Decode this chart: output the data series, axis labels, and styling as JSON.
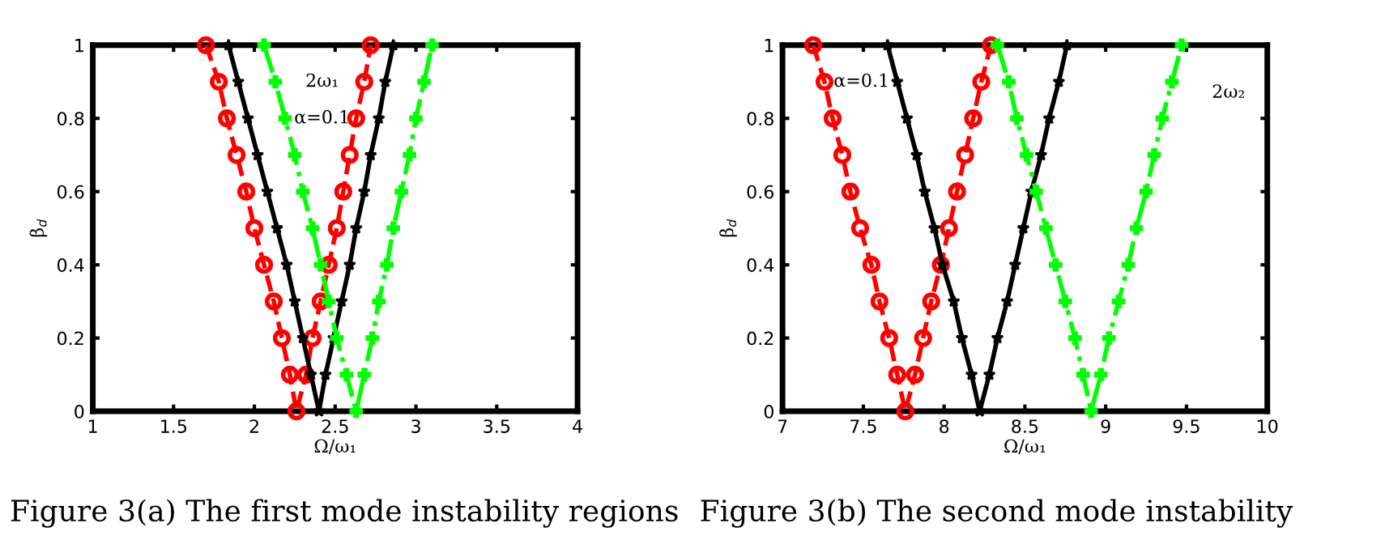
{
  "chart_data": [
    {
      "type": "line",
      "xlabel": "Ω/ω₁",
      "ylabel": "β$_{d}$",
      "xlim": [
        1,
        4
      ],
      "xticks": [
        1,
        1.5,
        2,
        2.5,
        3,
        3.5,
        4
      ],
      "ylim": [
        0,
        1
      ],
      "yticks": [
        0,
        0.2,
        0.4,
        0.6,
        0.8,
        1
      ],
      "grid": false,
      "legend": false,
      "series": [
        {
          "color": "#ff0000",
          "marker": "circle",
          "line_style": "dashed",
          "x": [
            1.7,
            1.78,
            1.83,
            1.89,
            1.95,
            2.0,
            2.06,
            2.12,
            2.17,
            2.22,
            2.26,
            2.32,
            2.36,
            2.41,
            2.46,
            2.51,
            2.55,
            2.59,
            2.63,
            2.68,
            2.72
          ],
          "values": [
            1,
            0.9,
            0.8,
            0.7,
            0.6,
            0.5,
            0.4,
            0.3,
            0.2,
            0.1,
            0,
            0.1,
            0.2,
            0.3,
            0.4,
            0.5,
            0.6,
            0.7,
            0.8,
            0.9,
            1
          ]
        },
        {
          "color": "#000000",
          "marker": "star",
          "line_style": "solid",
          "x": [
            1.84,
            1.9,
            1.96,
            2.02,
            2.08,
            2.14,
            2.2,
            2.25,
            2.3,
            2.35,
            2.4,
            2.44,
            2.49,
            2.54,
            2.59,
            2.63,
            2.68,
            2.72,
            2.77,
            2.81,
            2.86
          ],
          "values": [
            1,
            0.9,
            0.8,
            0.7,
            0.6,
            0.5,
            0.4,
            0.3,
            0.2,
            0.1,
            0,
            0.1,
            0.2,
            0.3,
            0.4,
            0.5,
            0.6,
            0.7,
            0.8,
            0.9,
            1
          ]
        },
        {
          "color": "#00ff00",
          "marker": "cross",
          "line_style": "dashdot",
          "x": [
            2.06,
            2.13,
            2.19,
            2.25,
            2.3,
            2.36,
            2.41,
            2.46,
            2.51,
            2.57,
            2.63,
            2.68,
            2.73,
            2.77,
            2.82,
            2.86,
            2.91,
            2.96,
            3.0,
            3.05,
            3.1
          ],
          "values": [
            1,
            0.9,
            0.8,
            0.7,
            0.6,
            0.5,
            0.4,
            0.3,
            0.2,
            0.1,
            0,
            0.1,
            0.2,
            0.3,
            0.4,
            0.5,
            0.6,
            0.7,
            0.8,
            0.9,
            1
          ]
        }
      ],
      "annotations": [
        "2ω₁",
        "α=0.1",
        "Figure 3(a) The first mode instability regions"
      ]
    },
    {
      "type": "line",
      "xlabel": "Ω/ω₁",
      "ylabel": "β$_{d}$",
      "xlim": [
        7,
        10
      ],
      "xticks": [
        7,
        7.5,
        8,
        8.5,
        9,
        9.5,
        10
      ],
      "ylim": [
        0,
        1
      ],
      "yticks": [
        0,
        0.2,
        0.4,
        0.6,
        0.8,
        1
      ],
      "grid": false,
      "legend": false,
      "series": [
        {
          "color": "#ff0000",
          "marker": "circle",
          "line_style": "dashed",
          "x": [
            7.19,
            7.26,
            7.31,
            7.37,
            7.42,
            7.48,
            7.55,
            7.6,
            7.66,
            7.71,
            7.76,
            7.82,
            7.87,
            7.92,
            7.98,
            8.03,
            8.08,
            8.13,
            8.18,
            8.23,
            8.29
          ],
          "values": [
            1,
            0.9,
            0.8,
            0.7,
            0.6,
            0.5,
            0.4,
            0.3,
            0.2,
            0.1,
            0,
            0.1,
            0.2,
            0.3,
            0.4,
            0.5,
            0.6,
            0.7,
            0.8,
            0.9,
            1
          ]
        },
        {
          "color": "#000000",
          "marker": "star",
          "line_style": "solid",
          "x": [
            7.65,
            7.71,
            7.77,
            7.83,
            7.88,
            7.94,
            7.99,
            8.06,
            8.11,
            8.17,
            8.22,
            8.28,
            8.33,
            8.39,
            8.44,
            8.49,
            8.54,
            8.6,
            8.65,
            8.71,
            8.76
          ],
          "values": [
            1,
            0.9,
            0.8,
            0.7,
            0.6,
            0.5,
            0.4,
            0.3,
            0.2,
            0.1,
            0,
            0.1,
            0.2,
            0.3,
            0.4,
            0.5,
            0.6,
            0.7,
            0.8,
            0.9,
            1
          ]
        },
        {
          "color": "#00ff00",
          "marker": "cross",
          "line_style": "dashdot",
          "x": [
            8.33,
            8.4,
            8.45,
            8.51,
            8.57,
            8.63,
            8.69,
            8.75,
            8.81,
            8.86,
            8.91,
            8.97,
            9.02,
            9.08,
            9.14,
            9.19,
            9.25,
            9.3,
            9.35,
            9.41,
            9.47
          ],
          "values": [
            1,
            0.9,
            0.8,
            0.7,
            0.6,
            0.5,
            0.4,
            0.3,
            0.2,
            0.1,
            0,
            0.1,
            0.2,
            0.3,
            0.4,
            0.5,
            0.6,
            0.7,
            0.8,
            0.9,
            1
          ]
        }
      ],
      "annotations": [
        "α=0.1",
        "2ω₂",
        "Figure 3(b) The second mode instability"
      ]
    }
  ]
}
